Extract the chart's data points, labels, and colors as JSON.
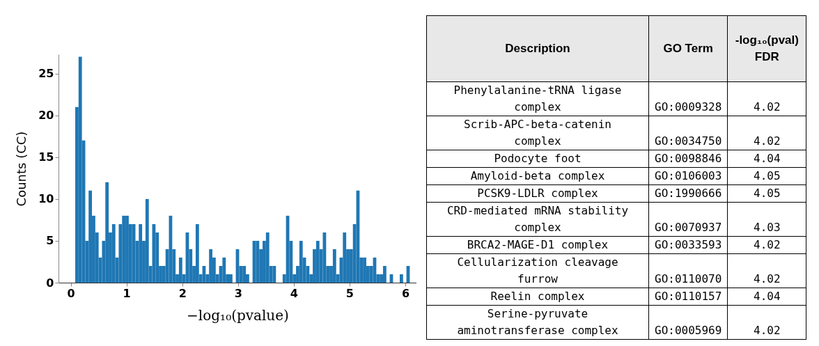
{
  "chart_data": [
    {
      "type": "histogram",
      "xlabel": "−log₁₀(pvalue)",
      "ylabel": "Counts (CC)",
      "color": "#1f77b4",
      "bins": [
        0.08,
        0.14,
        0.2,
        0.26,
        0.32,
        0.38,
        0.44,
        0.5,
        0.56,
        0.62,
        0.68,
        0.74,
        0.8,
        0.86,
        0.92,
        0.98,
        1.04,
        1.1,
        1.16,
        1.22,
        1.28,
        1.34,
        1.4,
        1.46,
        1.52,
        1.58,
        1.64,
        1.7,
        1.76,
        1.82,
        1.88,
        1.94,
        2,
        2.06,
        2.12,
        2.18,
        2.24,
        2.3,
        2.36,
        2.42,
        2.48,
        2.54,
        2.6,
        2.66,
        2.72,
        2.78,
        2.84,
        2.9,
        2.96,
        3.02,
        3.08,
        3.14,
        3.2,
        3.26,
        3.32,
        3.38,
        3.44,
        3.5,
        3.56,
        3.62,
        3.68,
        3.74,
        3.8,
        3.86,
        3.92,
        3.98,
        4.04,
        4.1,
        4.16,
        4.22,
        4.28,
        4.34,
        4.4,
        4.46,
        4.52,
        4.58,
        4.64,
        4.7,
        4.76,
        4.82,
        4.88,
        4.94,
        5,
        5.06,
        5.12,
        5.18,
        5.24,
        5.3,
        5.36,
        5.42,
        5.48,
        5.54,
        5.6,
        5.66,
        5.72,
        5.78,
        5.84,
        5.9,
        5.96,
        6.02,
        6.08
      ],
      "values": [
        21,
        27,
        17,
        5,
        11,
        8,
        6,
        3,
        5,
        12,
        6,
        7,
        3,
        7,
        8,
        8,
        7,
        7,
        5,
        7,
        5,
        10,
        2,
        7,
        6,
        2,
        2,
        4,
        8,
        4,
        1,
        3,
        1,
        6,
        4,
        2,
        7,
        1,
        2,
        1,
        4,
        3,
        1,
        2,
        3,
        1,
        1,
        0,
        4,
        2,
        2,
        1,
        0,
        5,
        5,
        4,
        5,
        6,
        2,
        2,
        0,
        0,
        1,
        8,
        5,
        1,
        2,
        5,
        3,
        2,
        1,
        4,
        5,
        4,
        6,
        2,
        2,
        4,
        1,
        3,
        6,
        4,
        4,
        7,
        11,
        3,
        3,
        2,
        2,
        3,
        1,
        1,
        2,
        0,
        1,
        0,
        0,
        1,
        0,
        2
      ],
      "xlim": [
        -0.22,
        6.2
      ],
      "ylim": [
        0,
        27.3
      ],
      "xticks": [
        0,
        1,
        2,
        3,
        4,
        5,
        6
      ],
      "yticks": [
        0,
        5,
        10,
        15,
        20,
        25
      ],
      "grid": false
    },
    {
      "type": "other",
      "categories": [
        "Description",
        "GO Term",
        "-log₁₀(pval) FDR"
      ],
      "cell_labels": [
        [
          "Phenylalanine-tRNA ligase complex",
          "GO:0009328",
          "4.02"
        ],
        [
          "Scrib-APC-beta-catenin complex",
          "GO:0034750",
          "4.02"
        ],
        [
          "Podocyte foot",
          "GO:0098846",
          "4.04"
        ],
        [
          "Amyloid-beta complex",
          "GO:0106003",
          "4.05"
        ],
        [
          "PCSK9-LDLR complex",
          "GO:1990666",
          "4.05"
        ],
        [
          "CRD-mediated mRNA stability complex",
          "GO:0070937",
          "4.03"
        ],
        [
          "BRCA2-MAGE-D1 complex",
          "GO:0033593",
          "4.02"
        ],
        [
          "Cellularization cleavage furrow",
          "GO:0110070",
          "4.02"
        ],
        [
          "Reelin complex",
          "GO:0110157",
          "4.04"
        ],
        [
          "Serine-pyruvate aminotransferase complex",
          "GO:0005969",
          "4.02"
        ]
      ]
    }
  ]
}
